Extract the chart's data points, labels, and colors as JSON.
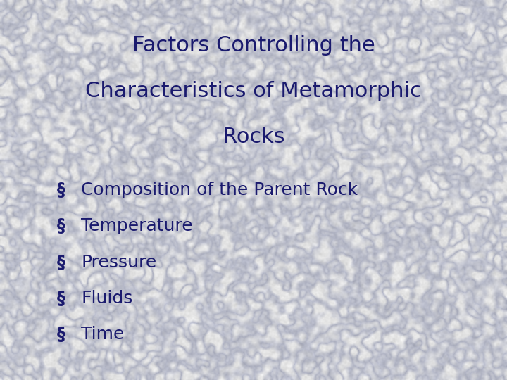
{
  "title_line1": "Factors Controlling the",
  "title_line2": "Characteristics of Metamorphic",
  "title_line3": "Rocks",
  "title_color": "#1a1a6e",
  "title_fontsize": 22,
  "bullet_symbol": "§",
  "bullet_items": [
    "Composition of the Parent Rock",
    "Temperature",
    "Pressure",
    "Fluids",
    "Time"
  ],
  "bullet_color": "#1a1a6e",
  "bullet_fontsize": 18,
  "fig_width": 7.2,
  "fig_height": 5.4,
  "dpi": 100
}
